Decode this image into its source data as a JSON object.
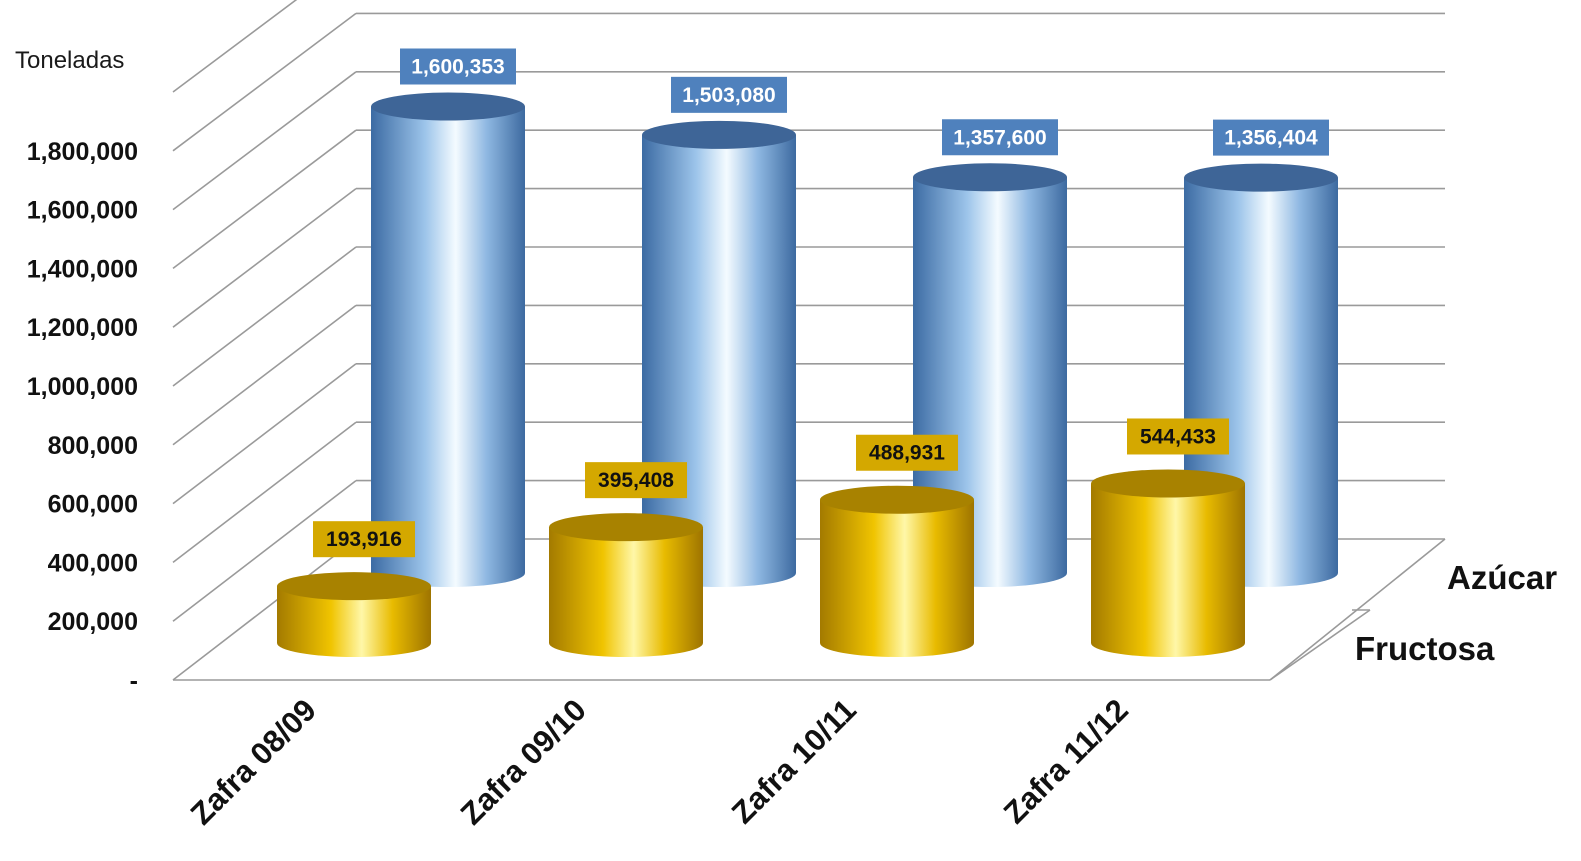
{
  "chart_data": {
    "type": "bar",
    "style": "3d-cylinder",
    "ylabel": "Toneladas",
    "categories": [
      "Zafra 08/09",
      "Zafra 09/10",
      "Zafra 10/11",
      "Zafra 11/12"
    ],
    "series": [
      {
        "name": "Azúcar",
        "values": [
          1600353,
          1503080,
          1357600,
          1356404
        ],
        "labels": [
          "1,600,353",
          "1,503,080",
          "1,357,600",
          "1,356,404"
        ],
        "color": "#4f81bd"
      },
      {
        "name": "Fructosa",
        "values": [
          193916,
          395408,
          488931,
          544433
        ],
        "labels": [
          "193,916",
          "395,408",
          "488,931",
          "544,433"
        ],
        "color": "#d4a800"
      }
    ],
    "ylim": [
      0,
      1800000
    ],
    "yticks": [
      "-",
      "200,000",
      "400,000",
      "600,000",
      "800,000",
      "1,000,000",
      "1,200,000",
      "1,400,000",
      "1,600,000",
      "1,800,000"
    ],
    "grid": true,
    "legend": "none"
  }
}
